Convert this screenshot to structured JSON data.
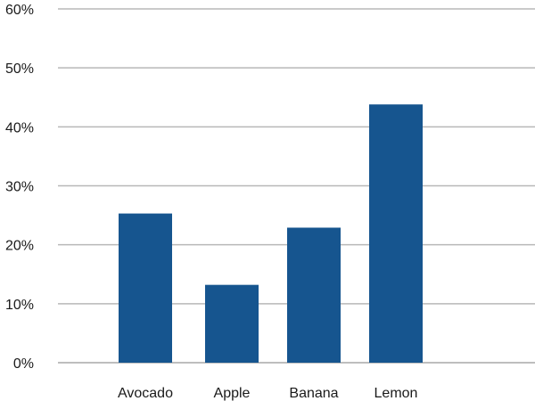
{
  "chart_data": {
    "type": "bar",
    "categories": [
      "Avocado",
      "Apple",
      "Banana",
      "Lemon"
    ],
    "values": [
      25.3,
      13.2,
      22.9,
      43.8
    ],
    "ylim": [
      0,
      60
    ],
    "yticks": [
      0,
      10,
      20,
      30,
      40,
      50,
      60
    ],
    "ytick_labels": [
      "0%",
      "10%",
      "20%",
      "30%",
      "40%",
      "50%",
      "60%"
    ],
    "title": "",
    "xlabel": "",
    "ylabel": "",
    "grid": true,
    "legend": "none",
    "colors": {
      "bar": "#16558f"
    }
  }
}
